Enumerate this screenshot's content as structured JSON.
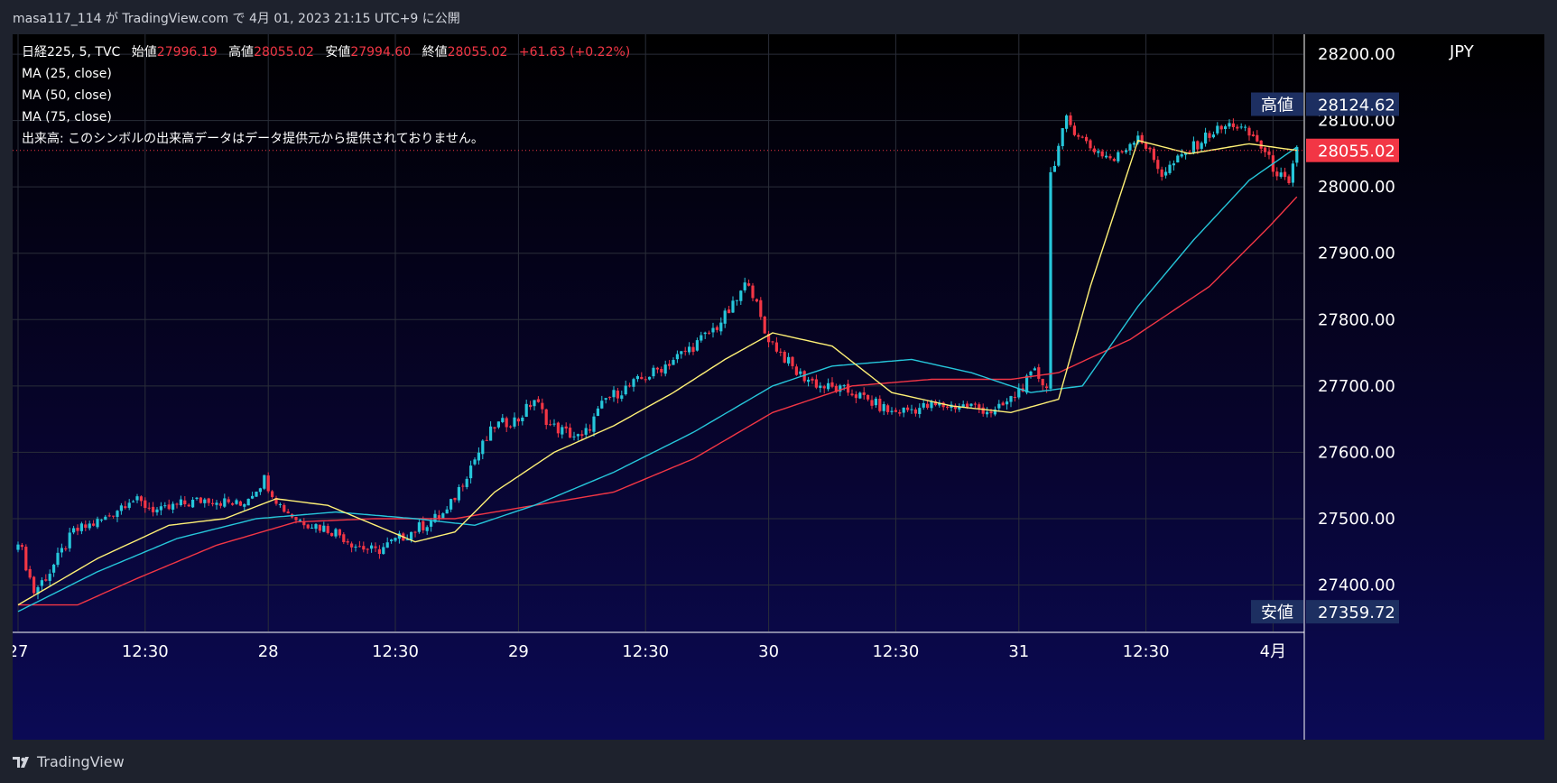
{
  "caption": "masa117_114 が TradingView.com で 4月 01, 2023 21:15 UTC+9 に公開",
  "legend": {
    "symbol_line_prefix": "日経225, 5, TVC",
    "open_label": "始値",
    "open_value": "27996.19",
    "high_label": "高値",
    "high_value": "28055.02",
    "low_label": "安値",
    "low_value": "27994.60",
    "close_label": "終値",
    "close_value": "28055.02",
    "change": "+61.63 (+0.22%)",
    "ma25": "MA (25, close)",
    "ma50": "MA (50, close)",
    "ma75": "MA (75, close)",
    "volume_note": "出来高: このシンボルの出来高データはデータ提供元から提供されておりません。"
  },
  "brand": {
    "name": "TradingView",
    "icon": "tradingview-logo-icon"
  },
  "colors": {
    "up": "#26c6da",
    "down": "#f23645",
    "ma25": "#fff176",
    "ma50": "#26c6da",
    "ma75": "#f23645",
    "price_line": "#f23645",
    "badge_bg": "#1d2f61"
  },
  "chart_data": {
    "type": "candlestick",
    "symbol": "日経225",
    "interval": "5",
    "currency": "JPY",
    "ylim": [
      27330,
      28230
    ],
    "y_ticks": [
      "28200.00",
      "28100.00",
      "28000.00",
      "27900.00",
      "27800.00",
      "27700.00",
      "27600.00",
      "27500.00",
      "27400.00"
    ],
    "x_ticks": [
      "27",
      "12:30",
      "28",
      "12:30",
      "29",
      "12:30",
      "30",
      "12:30",
      "31",
      "12:30",
      "4月"
    ],
    "last_price": "28055.02",
    "high_badge": {
      "label": "高値",
      "value": "28124.62"
    },
    "low_badge": {
      "label": "安値",
      "value": "27359.72"
    },
    "close_anchors": [
      [
        0,
        27470
      ],
      [
        4,
        27390
      ],
      [
        8,
        27420
      ],
      [
        14,
        27480
      ],
      [
        22,
        27500
      ],
      [
        28,
        27530
      ],
      [
        36,
        27510
      ],
      [
        40,
        27520
      ],
      [
        48,
        27530
      ],
      [
        56,
        27520
      ],
      [
        62,
        27560
      ],
      [
        66,
        27520
      ],
      [
        70,
        27500
      ],
      [
        80,
        27480
      ],
      [
        85,
        27460
      ],
      [
        90,
        27450
      ],
      [
        96,
        27470
      ],
      [
        102,
        27490
      ],
      [
        108,
        27510
      ],
      [
        114,
        27580
      ],
      [
        120,
        27640
      ],
      [
        126,
        27650
      ],
      [
        130,
        27680
      ],
      [
        134,
        27640
      ],
      [
        142,
        27620
      ],
      [
        148,
        27680
      ],
      [
        154,
        27700
      ],
      [
        160,
        27720
      ],
      [
        170,
        27760
      ],
      [
        176,
        27790
      ],
      [
        180,
        27820
      ],
      [
        184,
        27860
      ],
      [
        188,
        27780
      ],
      [
        192,
        27750
      ],
      [
        196,
        27720
      ],
      [
        202,
        27700
      ],
      [
        210,
        27690
      ],
      [
        220,
        27660
      ],
      [
        230,
        27670
      ],
      [
        240,
        27670
      ],
      [
        246,
        27660
      ],
      [
        250,
        27680
      ],
      [
        256,
        27720
      ],
      [
        259,
        27700
      ],
      [
        260,
        28020
      ],
      [
        264,
        28100
      ],
      [
        270,
        28060
      ],
      [
        276,
        28040
      ],
      [
        282,
        28080
      ],
      [
        288,
        28020
      ],
      [
        294,
        28050
      ],
      [
        300,
        28080
      ],
      [
        306,
        28095
      ],
      [
        312,
        28070
      ],
      [
        316,
        28030
      ],
      [
        320,
        28000
      ],
      [
        322,
        28055
      ]
    ],
    "ma25_points": [
      [
        0,
        27370
      ],
      [
        20,
        27440
      ],
      [
        38,
        27490
      ],
      [
        52,
        27500
      ],
      [
        65,
        27530
      ],
      [
        78,
        27520
      ],
      [
        90,
        27490
      ],
      [
        100,
        27465
      ],
      [
        110,
        27480
      ],
      [
        120,
        27540
      ],
      [
        135,
        27600
      ],
      [
        150,
        27640
      ],
      [
        165,
        27690
      ],
      [
        178,
        27740
      ],
      [
        190,
        27780
      ],
      [
        205,
        27760
      ],
      [
        220,
        27690
      ],
      [
        235,
        27670
      ],
      [
        250,
        27660
      ],
      [
        262,
        27680
      ],
      [
        270,
        27850
      ],
      [
        282,
        28070
      ],
      [
        295,
        28050
      ],
      [
        310,
        28065
      ],
      [
        322,
        28055
      ]
    ],
    "ma50_points": [
      [
        0,
        27360
      ],
      [
        20,
        27420
      ],
      [
        40,
        27470
      ],
      [
        60,
        27500
      ],
      [
        80,
        27510
      ],
      [
        100,
        27500
      ],
      [
        115,
        27490
      ],
      [
        130,
        27520
      ],
      [
        150,
        27570
      ],
      [
        170,
        27630
      ],
      [
        190,
        27700
      ],
      [
        205,
        27730
      ],
      [
        225,
        27740
      ],
      [
        240,
        27720
      ],
      [
        255,
        27690
      ],
      [
        268,
        27700
      ],
      [
        282,
        27820
      ],
      [
        296,
        27920
      ],
      [
        310,
        28010
      ],
      [
        322,
        28060
      ]
    ],
    "ma75_points": [
      [
        0,
        27370
      ],
      [
        15,
        27370
      ],
      [
        30,
        27410
      ],
      [
        50,
        27460
      ],
      [
        70,
        27495
      ],
      [
        90,
        27500
      ],
      [
        110,
        27500
      ],
      [
        130,
        27520
      ],
      [
        150,
        27540
      ],
      [
        170,
        27590
      ],
      [
        190,
        27660
      ],
      [
        210,
        27700
      ],
      [
        230,
        27710
      ],
      [
        250,
        27710
      ],
      [
        262,
        27720
      ],
      [
        280,
        27770
      ],
      [
        300,
        27850
      ],
      [
        315,
        27940
      ],
      [
        322,
        27985
      ]
    ],
    "candle_count": 323
  }
}
